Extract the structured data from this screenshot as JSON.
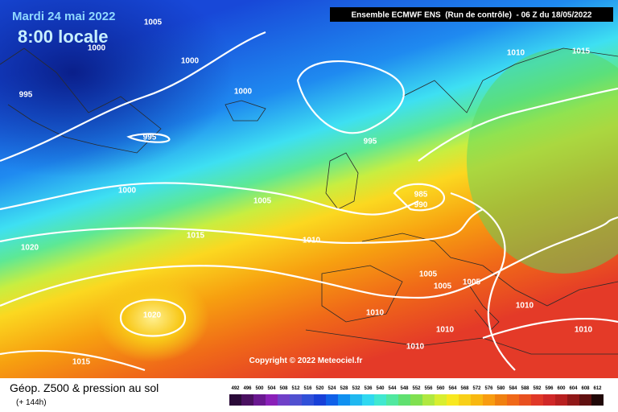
{
  "header": {
    "date": "Mardi 24 mai 2022",
    "time": "8:00 locale",
    "run": "Ensemble ECMWF ENS  (Run de contrôle)  - 06 Z du 18/05/2022"
  },
  "isobar_labels": [
    1005,
    1000,
    1000,
    995,
    1000,
    995,
    995,
    1010,
    1015,
    1000,
    1005,
    985,
    990,
    1015,
    1010,
    1020,
    1005,
    1005,
    1005,
    1010,
    1020,
    1010,
    1010,
    1010,
    1010,
    1015
  ],
  "copyright": "Copyright © 2022 Meteociel.fr",
  "footer": {
    "title": "Géop. Z500 & pression au sol",
    "lead": "(+ 144h)"
  },
  "scale": {
    "labels": [
      492,
      496,
      500,
      504,
      508,
      512,
      516,
      520,
      524,
      528,
      532,
      536,
      540,
      544,
      548,
      552,
      556,
      560,
      564,
      568,
      572,
      576,
      580,
      584,
      588,
      592,
      596,
      600,
      604,
      608,
      612
    ]
  }
}
